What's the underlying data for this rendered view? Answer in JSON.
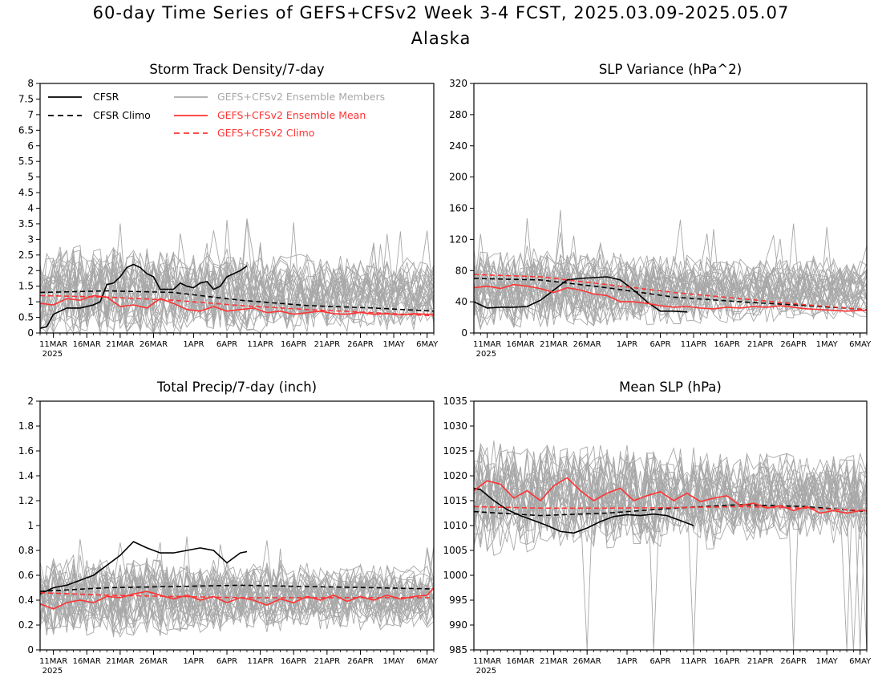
{
  "title": "60-day Time Series of GEFS+CFSv2 Week 3-4 FCST, 2025.03.09-2025.05.07",
  "region": "Alaska",
  "colors": {
    "cfsr": "#000000",
    "ensemble_member": "#a8a8a8",
    "ensemble_mean": "#ff3333",
    "climo_red": "#ff3333"
  },
  "legend": {
    "cfsr": "CFSR",
    "cfsr_climo": "CFSR Climo",
    "members": "GEFS+CFSv2 Ensemble Members",
    "mean": "GEFS+CFSv2 Ensemble Mean",
    "climo": "GEFS+CFSv2 Climo"
  },
  "x_axis": {
    "start": "2025-03-09",
    "end": "2025-05-07",
    "tick_labels": [
      "11MAR",
      "16MAR",
      "21MAR",
      "26MAR",
      "1APR",
      "6APR",
      "11APR",
      "16APR",
      "21APR",
      "26APR",
      "1MAY",
      "6MAY"
    ],
    "tick_dates": [
      "2025-03-11",
      "2025-03-16",
      "2025-03-21",
      "2025-03-26",
      "2025-04-01",
      "2025-04-06",
      "2025-04-11",
      "2025-04-16",
      "2025-04-21",
      "2025-04-26",
      "2025-05-01",
      "2025-05-06"
    ],
    "year_label": "2025"
  },
  "chart_data": [
    {
      "type": "line",
      "title": "Storm Track Density/7-day",
      "ylim": [
        0,
        8
      ],
      "yticks": [
        "0",
        "0.5",
        "1",
        "1.5",
        "2",
        "2.5",
        "3",
        "3.5",
        "4",
        "4.5",
        "5",
        "5.5",
        "6",
        "6.5",
        "7",
        "7.5",
        "8"
      ],
      "show_legend": true,
      "members": {
        "count": 30,
        "typical_min": 0.0,
        "typical_max": 2.5,
        "peak": 3.7
      },
      "series": [
        {
          "name": "CFSR",
          "style": "solid-black",
          "x": [
            "2025-03-09",
            "2025-03-10",
            "2025-03-11",
            "2025-03-13",
            "2025-03-15",
            "2025-03-17",
            "2025-03-18",
            "2025-03-19",
            "2025-03-20",
            "2025-03-21",
            "2025-03-22",
            "2025-03-23",
            "2025-03-24",
            "2025-03-25",
            "2025-03-26",
            "2025-03-27",
            "2025-03-28",
            "2025-03-29",
            "2025-03-30",
            "2025-03-31",
            "2025-04-01",
            "2025-04-02",
            "2025-04-03",
            "2025-04-04",
            "2025-04-05",
            "2025-04-06",
            "2025-04-07",
            "2025-04-08",
            "2025-04-09"
          ],
          "y": [
            0.15,
            0.2,
            0.6,
            0.8,
            0.8,
            0.9,
            1.0,
            1.55,
            1.6,
            1.8,
            2.1,
            2.2,
            2.1,
            1.9,
            1.8,
            1.4,
            1.4,
            1.4,
            1.6,
            1.5,
            1.45,
            1.6,
            1.65,
            1.4,
            1.5,
            1.8,
            1.9,
            2.0,
            2.15
          ]
        },
        {
          "name": "CFSR Climo",
          "style": "dashed-black",
          "x": [
            "2025-03-09",
            "2025-03-19",
            "2025-03-29",
            "2025-04-08",
            "2025-04-18",
            "2025-04-28",
            "2025-05-07"
          ],
          "y": [
            1.3,
            1.35,
            1.3,
            1.05,
            0.88,
            0.8,
            0.7
          ]
        },
        {
          "name": "GEFS+CFSv2 Ensemble Mean",
          "style": "solid-red",
          "x": [
            "2025-03-09",
            "2025-03-11",
            "2025-03-13",
            "2025-03-15",
            "2025-03-17",
            "2025-03-19",
            "2025-03-21",
            "2025-03-23",
            "2025-03-25",
            "2025-03-27",
            "2025-03-29",
            "2025-03-31",
            "2025-04-02",
            "2025-04-04",
            "2025-04-06",
            "2025-04-08",
            "2025-04-10",
            "2025-04-12",
            "2025-04-14",
            "2025-04-16",
            "2025-04-18",
            "2025-04-20",
            "2025-04-22",
            "2025-04-24",
            "2025-04-26",
            "2025-04-28",
            "2025-04-30",
            "2025-05-02",
            "2025-05-04",
            "2025-05-06",
            "2025-05-07"
          ],
          "y": [
            0.95,
            0.9,
            1.1,
            1.05,
            1.2,
            1.15,
            0.85,
            0.9,
            0.8,
            1.1,
            0.95,
            0.75,
            0.7,
            0.85,
            0.7,
            0.75,
            0.8,
            0.65,
            0.7,
            0.6,
            0.65,
            0.7,
            0.62,
            0.6,
            0.66,
            0.6,
            0.62,
            0.58,
            0.62,
            0.6,
            0.6
          ]
        },
        {
          "name": "GEFS+CFSv2 Climo",
          "style": "dashed-red",
          "x": [
            "2025-03-09",
            "2025-03-19",
            "2025-03-29",
            "2025-04-08",
            "2025-04-18",
            "2025-04-28",
            "2025-05-07"
          ],
          "y": [
            1.2,
            1.15,
            1.05,
            0.88,
            0.75,
            0.65,
            0.55
          ]
        }
      ]
    },
    {
      "type": "line",
      "title": "SLP Variance (hPa^2)",
      "ylim": [
        0,
        320
      ],
      "yticks": [
        "0",
        "40",
        "80",
        "120",
        "160",
        "200",
        "240",
        "280",
        "320"
      ],
      "show_legend": false,
      "members": {
        "count": 30,
        "typical_min": 15,
        "typical_max": 100,
        "peak": 158
      },
      "series": [
        {
          "name": "CFSR",
          "style": "solid-black",
          "x": [
            "2025-03-09",
            "2025-03-11",
            "2025-03-13",
            "2025-03-15",
            "2025-03-17",
            "2025-03-19",
            "2025-03-21",
            "2025-03-23",
            "2025-03-25",
            "2025-03-27",
            "2025-03-29",
            "2025-03-31",
            "2025-04-02",
            "2025-04-04",
            "2025-04-06",
            "2025-04-08",
            "2025-04-10"
          ],
          "y": [
            40,
            32,
            33,
            33,
            34,
            42,
            55,
            68,
            70,
            71,
            72,
            68,
            55,
            40,
            28,
            28,
            27
          ]
        },
        {
          "name": "CFSR Climo",
          "style": "dashed-black",
          "x": [
            "2025-03-09",
            "2025-03-19",
            "2025-03-29",
            "2025-04-08",
            "2025-04-18",
            "2025-04-28",
            "2025-05-07"
          ],
          "y": [
            70,
            68,
            58,
            46,
            40,
            35,
            30
          ]
        },
        {
          "name": "GEFS+CFSv2 Ensemble Mean",
          "style": "solid-red",
          "x": [
            "2025-03-09",
            "2025-03-11",
            "2025-03-13",
            "2025-03-15",
            "2025-03-17",
            "2025-03-19",
            "2025-03-21",
            "2025-03-23",
            "2025-03-25",
            "2025-03-27",
            "2025-03-29",
            "2025-03-31",
            "2025-04-02",
            "2025-04-04",
            "2025-04-06",
            "2025-04-08",
            "2025-04-10",
            "2025-04-12",
            "2025-04-14",
            "2025-04-16",
            "2025-04-18",
            "2025-04-20",
            "2025-04-22",
            "2025-04-24",
            "2025-04-26",
            "2025-04-28",
            "2025-04-30",
            "2025-05-02",
            "2025-05-04",
            "2025-05-06",
            "2025-05-07"
          ],
          "y": [
            58,
            60,
            57,
            62,
            60,
            57,
            52,
            58,
            55,
            50,
            48,
            40,
            40,
            38,
            35,
            33,
            34,
            32,
            31,
            33,
            32,
            34,
            33,
            35,
            33,
            31,
            30,
            29,
            28,
            29,
            29
          ]
        },
        {
          "name": "GEFS+CFSv2 Climo",
          "style": "dashed-red",
          "x": [
            "2025-03-09",
            "2025-03-19",
            "2025-03-29",
            "2025-04-08",
            "2025-04-18",
            "2025-04-28",
            "2025-05-07"
          ],
          "y": [
            75,
            72,
            62,
            52,
            44,
            36,
            30
          ]
        }
      ]
    },
    {
      "type": "line",
      "title": "Total Precip/7-day (inch)",
      "ylim": [
        0,
        2
      ],
      "yticks": [
        "0",
        "0.2",
        "0.4",
        "0.6",
        "0.8",
        "1",
        "1.2",
        "1.4",
        "1.6",
        "1.8",
        "2"
      ],
      "show_legend": false,
      "members": {
        "count": 30,
        "typical_min": 0.15,
        "typical_max": 0.7,
        "peak": 0.92
      },
      "series": [
        {
          "name": "CFSR",
          "style": "solid-black",
          "x": [
            "2025-03-09",
            "2025-03-11",
            "2025-03-13",
            "2025-03-15",
            "2025-03-17",
            "2025-03-19",
            "2025-03-21",
            "2025-03-23",
            "2025-03-25",
            "2025-03-27",
            "2025-03-29",
            "2025-03-31",
            "2025-04-02",
            "2025-04-04",
            "2025-04-06",
            "2025-04-08",
            "2025-04-09"
          ],
          "y": [
            0.45,
            0.5,
            0.52,
            0.56,
            0.6,
            0.68,
            0.76,
            0.87,
            0.82,
            0.78,
            0.78,
            0.8,
            0.82,
            0.8,
            0.7,
            0.78,
            0.79
          ]
        },
        {
          "name": "CFSR Climo",
          "style": "dashed-black",
          "x": [
            "2025-03-09",
            "2025-03-19",
            "2025-03-29",
            "2025-04-08",
            "2025-04-18",
            "2025-04-28",
            "2025-05-07"
          ],
          "y": [
            0.47,
            0.5,
            0.51,
            0.52,
            0.51,
            0.5,
            0.49
          ]
        },
        {
          "name": "GEFS+CFSv2 Ensemble Mean",
          "style": "solid-red",
          "x": [
            "2025-03-09",
            "2025-03-11",
            "2025-03-13",
            "2025-03-15",
            "2025-03-17",
            "2025-03-19",
            "2025-03-21",
            "2025-03-23",
            "2025-03-25",
            "2025-03-27",
            "2025-03-29",
            "2025-03-31",
            "2025-04-02",
            "2025-04-04",
            "2025-04-06",
            "2025-04-08",
            "2025-04-10",
            "2025-04-12",
            "2025-04-14",
            "2025-04-16",
            "2025-04-18",
            "2025-04-20",
            "2025-04-22",
            "2025-04-24",
            "2025-04-26",
            "2025-04-28",
            "2025-04-30",
            "2025-05-02",
            "2025-05-04",
            "2025-05-06",
            "2025-05-07"
          ],
          "y": [
            0.37,
            0.33,
            0.38,
            0.4,
            0.38,
            0.43,
            0.42,
            0.45,
            0.47,
            0.44,
            0.41,
            0.44,
            0.4,
            0.43,
            0.38,
            0.42,
            0.4,
            0.36,
            0.41,
            0.38,
            0.43,
            0.4,
            0.44,
            0.39,
            0.43,
            0.4,
            0.44,
            0.41,
            0.43,
            0.44,
            0.5
          ]
        },
        {
          "name": "GEFS+CFSv2 Climo",
          "style": "dashed-red",
          "x": [
            "2025-03-09",
            "2025-03-19",
            "2025-03-29",
            "2025-04-08",
            "2025-04-18",
            "2025-04-28",
            "2025-05-07"
          ],
          "y": [
            0.46,
            0.44,
            0.43,
            0.42,
            0.42,
            0.42,
            0.42
          ]
        }
      ]
    },
    {
      "type": "line",
      "title": "Mean SLP (hPa)",
      "ylim": [
        985,
        1035
      ],
      "yticks": [
        "985",
        "990",
        "995",
        "1000",
        "1005",
        "1010",
        "1015",
        "1020",
        "1025",
        "1030",
        "1035"
      ],
      "show_legend": false,
      "members": {
        "count": 30,
        "typical_min": 1006,
        "typical_max": 1025,
        "peak": 1029
      },
      "series": [
        {
          "name": "CFSR",
          "style": "solid-black",
          "x": [
            "2025-03-09",
            "2025-03-10",
            "2025-03-12",
            "2025-03-14",
            "2025-03-16",
            "2025-03-18",
            "2025-03-20",
            "2025-03-22",
            "2025-03-24",
            "2025-03-26",
            "2025-03-28",
            "2025-03-30",
            "2025-04-01",
            "2025-04-03",
            "2025-04-05",
            "2025-04-07",
            "2025-04-09",
            "2025-04-11"
          ],
          "y": [
            1017.5,
            1017.2,
            1015.0,
            1013.2,
            1012.0,
            1011.0,
            1010.0,
            1008.8,
            1008.5,
            1009.5,
            1010.8,
            1011.8,
            1012.2,
            1012.0,
            1012.3,
            1012.0,
            1011.0,
            1010.0
          ]
        },
        {
          "name": "CFSR Climo",
          "style": "dashed-black",
          "x": [
            "2025-03-09",
            "2025-03-19",
            "2025-03-29",
            "2025-04-08",
            "2025-04-18",
            "2025-04-28",
            "2025-05-07"
          ],
          "y": [
            1012.8,
            1012.0,
            1012.5,
            1013.5,
            1014.2,
            1013.8,
            1012.8
          ]
        },
        {
          "name": "GEFS+CFSv2 Ensemble Mean",
          "style": "solid-red",
          "x": [
            "2025-03-09",
            "2025-03-11",
            "2025-03-13",
            "2025-03-15",
            "2025-03-17",
            "2025-03-19",
            "2025-03-21",
            "2025-03-23",
            "2025-03-25",
            "2025-03-27",
            "2025-03-29",
            "2025-03-31",
            "2025-04-02",
            "2025-04-04",
            "2025-04-06",
            "2025-04-08",
            "2025-04-10",
            "2025-04-12",
            "2025-04-14",
            "2025-04-16",
            "2025-04-18",
            "2025-04-20",
            "2025-04-22",
            "2025-04-24",
            "2025-04-26",
            "2025-04-28",
            "2025-04-30",
            "2025-05-02",
            "2025-05-04",
            "2025-05-06",
            "2025-05-07"
          ],
          "y": [
            1017.0,
            1019.0,
            1018.3,
            1015.5,
            1017.0,
            1015.0,
            1018.0,
            1019.6,
            1017.0,
            1015.0,
            1016.5,
            1017.5,
            1015.0,
            1016.0,
            1016.8,
            1015.0,
            1016.5,
            1014.8,
            1015.5,
            1016.0,
            1014.0,
            1014.5,
            1013.5,
            1014.0,
            1013.0,
            1013.8,
            1012.5,
            1013.0,
            1012.5,
            1013.0,
            1013.0
          ]
        },
        {
          "name": "GEFS+CFSv2 Climo",
          "style": "dashed-red",
          "x": [
            "2025-03-09",
            "2025-03-19",
            "2025-03-29",
            "2025-04-08",
            "2025-04-18",
            "2025-04-28",
            "2025-05-07"
          ],
          "y": [
            1013.8,
            1013.5,
            1013.5,
            1013.6,
            1013.8,
            1013.5,
            1013.0
          ]
        }
      ]
    }
  ]
}
